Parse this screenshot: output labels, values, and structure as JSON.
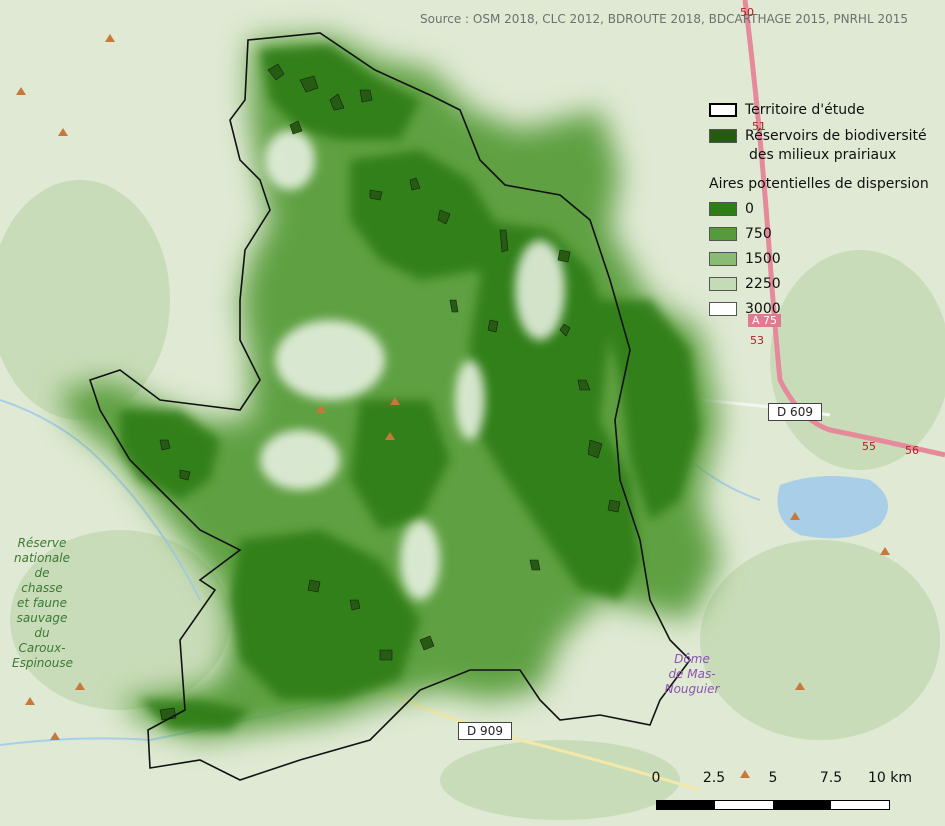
{
  "source": "Source : OSM 2018, CLC 2012, BDROUTE 2018, BDCARTHAGE 2015, PNRHL 2015",
  "legend": {
    "territory_label": "Territoire d'étude",
    "reservoir_label_line1": "Réservoirs de biodiversité",
    "reservoir_label_line2": "des milieux prairiaux",
    "dispersion_title": "Aires potentielles de dispersion",
    "classes": [
      {
        "label": "0",
        "color": "#2e7d15"
      },
      {
        "label": "750",
        "color": "#579a3c"
      },
      {
        "label": "1500",
        "color": "#8abb72"
      },
      {
        "label": "2250",
        "color": "#c3dcb5"
      },
      {
        "label": "3000",
        "color": "#ffffff"
      }
    ],
    "territory_color": "#000000",
    "reservoir_color": "#265b12"
  },
  "scale": {
    "labels": [
      "0",
      "2.5",
      "5",
      "7.5",
      "10 km"
    ]
  },
  "basemap_labels": {
    "reserve": [
      "Réserve",
      "nationale",
      "de chasse",
      "et faune",
      "sauvage",
      "du Caroux-",
      "Espinouse"
    ],
    "lieu": [
      "Dôme",
      "de Mas-",
      "Nouguier"
    ],
    "road_d609": "D 609",
    "road_d909": "D 909",
    "motorway": "A 75",
    "km_50": "50",
    "km_51": "51",
    "km_53": "53",
    "km_55": "55",
    "km_56": "56"
  }
}
